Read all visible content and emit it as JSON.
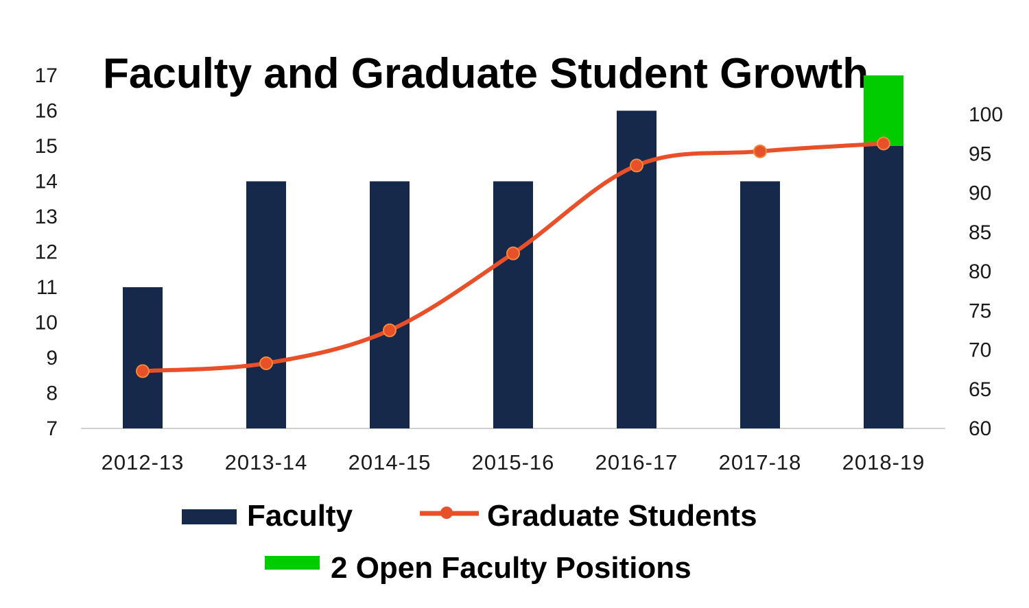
{
  "chart_data": {
    "type": "bar",
    "title": "Faculty and Graduate Student Growth",
    "categories": [
      "2012-13",
      "2013-14",
      "2014-15",
      "2015-16",
      "2016-17",
      "2017-18",
      "2018-19"
    ],
    "series": [
      {
        "name": "Faculty",
        "type": "bar",
        "axis": "left",
        "color": "#17294a",
        "values": [
          11,
          14,
          14,
          14,
          16,
          14,
          15
        ]
      },
      {
        "name": "2 Open Faculty Positions",
        "type": "bar-stacked",
        "axis": "left",
        "color": "#00cc00",
        "values": [
          0,
          0,
          0,
          0,
          0,
          0,
          2
        ]
      },
      {
        "name": "Graduate Students",
        "type": "line",
        "axis": "right",
        "color": "#e8502a",
        "values": [
          67.3,
          68.3,
          72.5,
          82.3,
          93.5,
          95.3,
          96.3
        ]
      }
    ],
    "y_left": {
      "min": 7,
      "max": 17,
      "ticks": [
        7,
        8,
        9,
        10,
        11,
        12,
        13,
        14,
        15,
        16,
        17
      ]
    },
    "y_right": {
      "min": 60,
      "max": 100,
      "ticks": [
        60,
        65,
        70,
        75,
        80,
        85,
        90,
        95,
        100
      ]
    },
    "grid": false,
    "legend_position": "bottom"
  }
}
